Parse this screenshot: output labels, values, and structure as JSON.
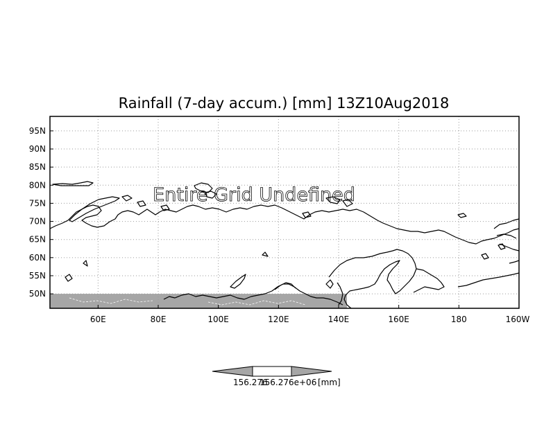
{
  "title": "Rainfall (7-day accum.) [mm] 13Z10Aug2018",
  "map": {
    "lon_range": [
      44,
      200
    ],
    "lat_range": [
      46,
      99
    ],
    "lat_ticks": [
      "95N",
      "90N",
      "85N",
      "80N",
      "75N",
      "70N",
      "65N",
      "60N",
      "55N",
      "50N"
    ],
    "lat_tick_values": [
      95,
      90,
      85,
      80,
      75,
      70,
      65,
      60,
      55,
      50
    ],
    "lon_ticks": [
      "60E",
      "80E",
      "100E",
      "120E",
      "140E",
      "160E",
      "180",
      "160W"
    ],
    "lon_tick_values": [
      60,
      80,
      100,
      120,
      140,
      160,
      180,
      200
    ],
    "grid": true,
    "undefined_region_color": "#a6a6a6",
    "undefined_lat_max": 50
  },
  "watermark": "Entire Grid Undefined",
  "colorbar": {
    "fill_color": "#a6a6a6",
    "label_left": "156.276",
    "label_center": "156.276e+06",
    "units": "[mm]"
  }
}
